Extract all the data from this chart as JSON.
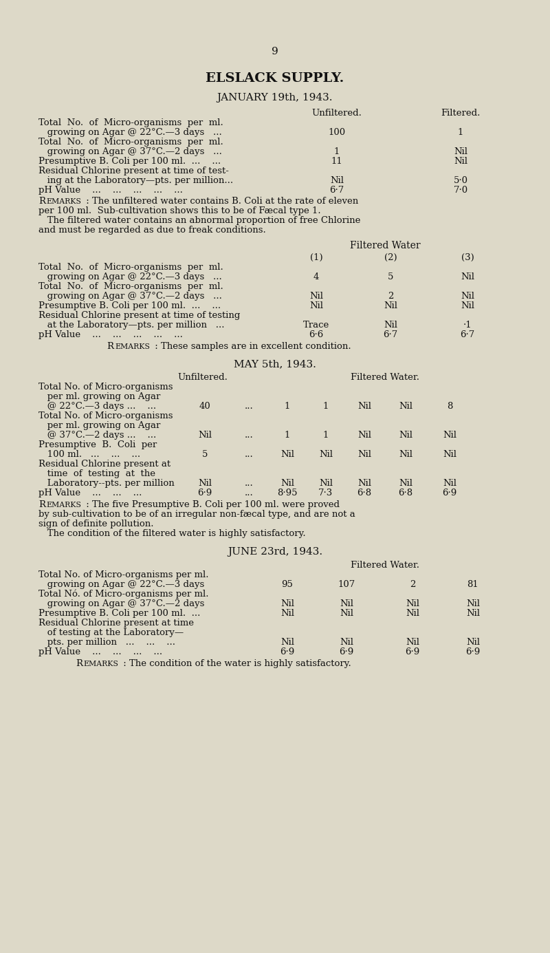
{
  "bg_color": "#ddd9c8",
  "text_color": "#1a1a1a",
  "page_number": "9",
  "title": "ELSLACK SUPPLY.",
  "subtitle": "JANUARY 19th, 1943."
}
